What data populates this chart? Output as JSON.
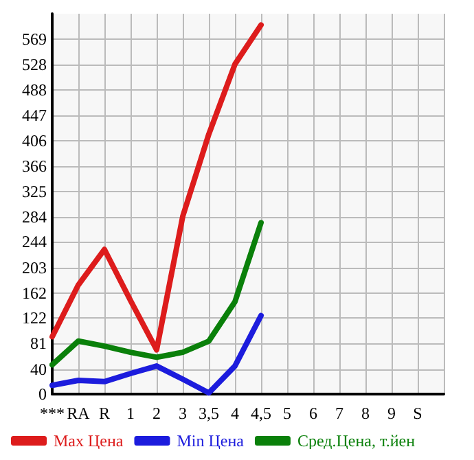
{
  "chart_data": {
    "type": "line",
    "categories": [
      "***",
      "RA",
      "R",
      "1",
      "2",
      "3",
      "3,5",
      "4",
      "4,5",
      "5",
      "6",
      "7",
      "8",
      "9",
      "S",
      null
    ],
    "series": [
      {
        "name": "Max Цена",
        "color": "#dd1c1c",
        "values": [
          92,
          175,
          232,
          150,
          71,
          285,
          417,
          529,
          592,
          null,
          null,
          null,
          null,
          null,
          null,
          null
        ]
      },
      {
        "name": "Min Цена",
        "color": "#1c1cdd",
        "values": [
          14,
          22,
          20,
          33,
          45,
          24,
          2,
          45,
          126,
          null,
          null,
          null,
          null,
          null,
          null,
          null
        ]
      },
      {
        "name": "Сред.Цена, т.йен",
        "color": "#0a800a",
        "values": [
          47,
          85,
          77,
          67,
          59,
          67,
          85,
          148,
          275,
          null,
          null,
          null,
          null,
          null,
          null,
          null
        ]
      }
    ],
    "ylim": [
      0,
      610
    ],
    "yticks": [
      0,
      40,
      81,
      122,
      162,
      203,
      244,
      284,
      325,
      366,
      406,
      447,
      488,
      528,
      569
    ],
    "grid": true,
    "legend": "bottom",
    "marker": "none",
    "line_style": "solid"
  }
}
